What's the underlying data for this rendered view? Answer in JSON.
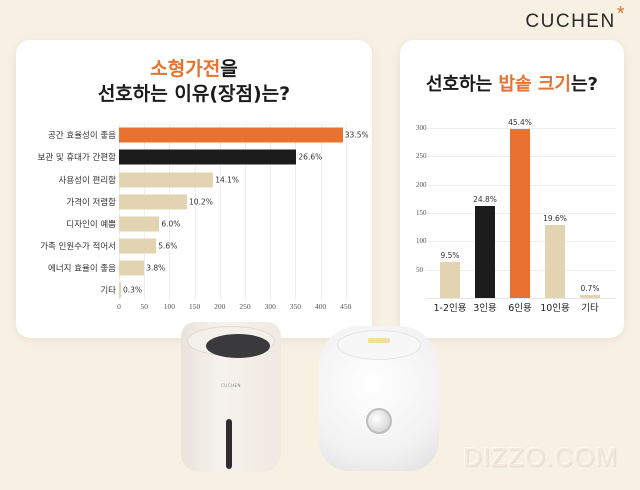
{
  "brand": {
    "logo_text": "CUCHEN",
    "logo_mark": "*"
  },
  "left_panel": {
    "title_line1_accent": "소형가전",
    "title_line1_rest": "을",
    "title_line2": "선호하는 이유(장점)는?"
  },
  "right_panel": {
    "title_prefix": "선호하는 ",
    "title_accent": "밥솥 크기",
    "title_suffix": "는?"
  },
  "colors": {
    "accent": "#e8722f",
    "dark": "#1c1c1c",
    "beige": "#e2d3b1",
    "background": "#f7f1e4"
  },
  "chart_data": [
    {
      "type": "bar",
      "orientation": "horizontal",
      "title": "소형가전을 선호하는 이유(장점)는?",
      "categories": [
        "공간 효율성이 좋음",
        "보관 및 휴대가 간편함",
        "사용성이 편리함",
        "가격이 저렴함",
        "디자인이 예쁨",
        "가족 인원수가 적어서",
        "에너지 효율이 좋음",
        "기타"
      ],
      "values": [
        444,
        352,
        187,
        135,
        80,
        74,
        50,
        4
      ],
      "labels": [
        "33.5%",
        "26.6%",
        "14.1%",
        "10.2%",
        "6.0%",
        "5.6%",
        "3.8%",
        "0.3%"
      ],
      "percent": [
        33.5,
        26.6,
        14.1,
        10.2,
        6.0,
        5.6,
        3.8,
        0.3
      ],
      "bar_colors": [
        "#e8722f",
        "#1c1c1c",
        "#e2d3b1",
        "#e2d3b1",
        "#e2d3b1",
        "#e2d3b1",
        "#e2d3b1",
        "#e2d3b1"
      ],
      "xlabel": "",
      "ylabel": "",
      "xlim": [
        0,
        450
      ],
      "xticks": [
        "0",
        "50",
        "100",
        "150",
        "200",
        "250",
        "300",
        "350",
        "400",
        "450"
      ],
      "grid": true,
      "legend": "none"
    },
    {
      "type": "bar",
      "orientation": "vertical",
      "title": "선호하는 밥솥 크기는?",
      "categories": [
        "1-2인용",
        "3인용",
        "6인용",
        "10인용",
        "기타"
      ],
      "values": [
        63,
        163,
        298,
        129,
        5
      ],
      "labels": [
        "9.5%",
        "24.8%",
        "45.4%",
        "19.6%",
        "0.7%"
      ],
      "percent": [
        9.5,
        24.8,
        45.4,
        19.6,
        0.7
      ],
      "bar_colors": [
        "#e2d3b1",
        "#1c1c1c",
        "#e8722f",
        "#e2d3b1",
        "#e2d3b1"
      ],
      "xlabel": "",
      "ylabel": "",
      "ylim": [
        0,
        300
      ],
      "yticks": [
        "50",
        "100",
        "150",
        "200",
        "250",
        "300"
      ],
      "grid": true,
      "legend": "none"
    }
  ],
  "products": {
    "left_brand": "CUCHEN"
  },
  "watermark": "DIZZO.COM"
}
